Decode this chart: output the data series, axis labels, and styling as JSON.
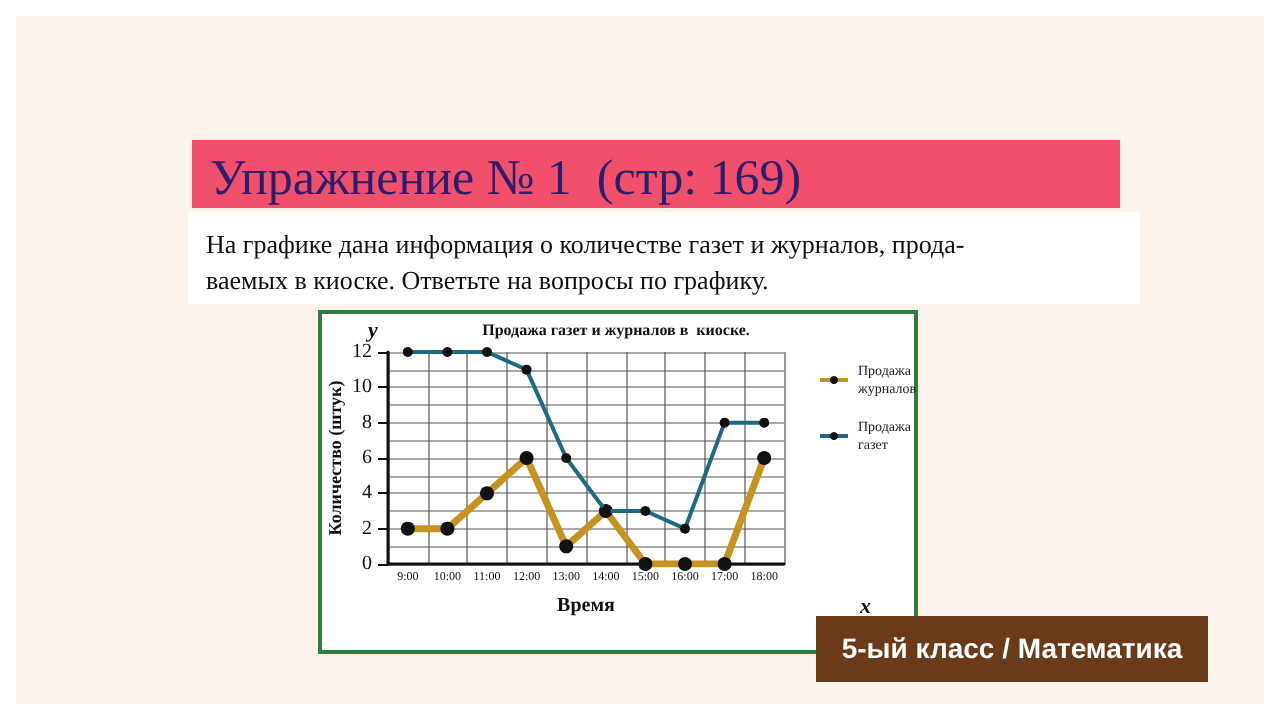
{
  "chart_data": {
    "type": "line",
    "title": "Упражнение № 1  (стр: 169)",
    "subtitle": "На графике дана информация о количестве газет и журналов, прода-\nваемых в киоске. Ответьте на вопросы по графику.",
    "xlabel": "Время",
    "ylabel": "Количество (штук)",
    "categories": [
      "9:00",
      "10:00",
      "11:00",
      "12:00",
      "13:00",
      "14:00",
      "15:00",
      "16:00",
      "17:00",
      "18:00"
    ],
    "series": [
      {
        "name": "Продажа журналов",
        "color": "#c8921e",
        "values": [
          2,
          2,
          4,
          6,
          1,
          3,
          0,
          0,
          0,
          6
        ]
      },
      {
        "name": "Продажа газет",
        "color": "#1d6a86",
        "values": [
          12,
          12,
          12,
          11,
          6,
          3,
          3,
          2,
          8,
          8
        ]
      }
    ],
    "ylim": [
      0,
      12
    ],
    "yticks": [
      0,
      2,
      4,
      6,
      8,
      10,
      12
    ],
    "grid": true,
    "legend": "right",
    "marker": "circle",
    "line_style": "solid",
    "annotations": [
      "Продажа газет и журналов в  киоске.",
      "y",
      "x",
      "5-ый класс / Математика"
    ]
  }
}
